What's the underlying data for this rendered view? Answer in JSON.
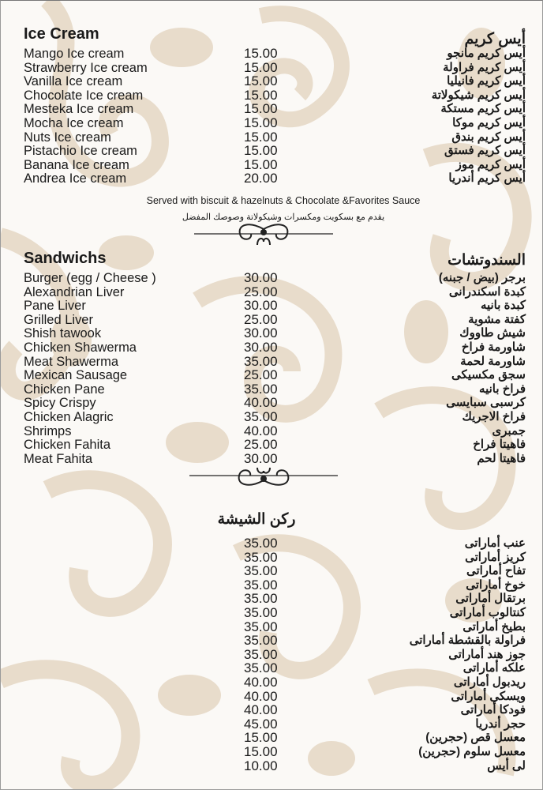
{
  "colors": {
    "background": "#fbf9f6",
    "damask": "#e8dccb",
    "text": "#1a1a1a"
  },
  "ice_cream": {
    "title_en": "Ice Cream",
    "title_ar": "أيس كريم",
    "items": [
      {
        "en": "Mango Ice cream",
        "price": "15.00",
        "ar": "أيس كريم مانجو"
      },
      {
        "en": "Strawberry Ice cream",
        "price": "15.00",
        "ar": "أيس كريم فراولة"
      },
      {
        "en": "Vanilla Ice cream",
        "price": "15.00",
        "ar": "أيس كريم فانيليا"
      },
      {
        "en": "Chocolate Ice cream",
        "price": "15.00",
        "ar": "أيس كريم شيكولاتة"
      },
      {
        "en": "Mesteka Ice cream",
        "price": "15.00",
        "ar": "أيس كريم مستكة"
      },
      {
        "en": "Mocha Ice cream",
        "price": "15.00",
        "ar": "أيس كريم موكا"
      },
      {
        "en": "Nuts Ice cream",
        "price": "15.00",
        "ar": "أيس كريم بندق"
      },
      {
        "en": "Pistachio Ice cream",
        "price": "15.00",
        "ar": "أيس كريم فستق"
      },
      {
        "en": "Banana Ice cream",
        "price": "15.00",
        "ar": "أيس كريم موز"
      },
      {
        "en": "Andrea Ice cream",
        "price": "20.00",
        "ar": "أيس كريم أندريا"
      }
    ],
    "note_en": "Served with biscuit & hazelnuts & Chocolate &Favorites Sauce",
    "note_ar": "يقدم مع بسكويت ومكسرات وشيكولاتة وصوصك المفضل"
  },
  "sandwiches": {
    "title_en": "Sandwichs",
    "title_ar": "السندوتشات",
    "items": [
      {
        "en": "Burger (egg / Cheese )",
        "price": "30.00",
        "ar": "برجر (بيض / جبنه)"
      },
      {
        "en": "Alexandrian Liver",
        "price": "25.00",
        "ar": "كبدة اسكندرانى"
      },
      {
        "en": "Pane Liver",
        "price": "30.00",
        "ar": "كبدة بانيه"
      },
      {
        "en": "Grilled Liver",
        "price": "25.00",
        "ar": "كفتة مشوية"
      },
      {
        "en": "Shish tawook",
        "price": "30.00",
        "ar": "شيش طاووك"
      },
      {
        "en": "Chicken Shawerma",
        "price": "30.00",
        "ar": "شاورمة فراخ"
      },
      {
        "en": "Meat Shawerma",
        "price": "35.00",
        "ar": "شاورمة لحمة"
      },
      {
        "en": "Mexican Sausage",
        "price": "25.00",
        "ar": "سجق مكسيكى"
      },
      {
        "en": "Chicken Pane",
        "price": "35.00",
        "ar": "فراخ بانيه"
      },
      {
        "en": "Spicy Crispy",
        "price": "40.00",
        "ar": "كرسبى سبايسى"
      },
      {
        "en": "Chicken Alagric",
        "price": "35.00",
        "ar": "فراخ الاجريك"
      },
      {
        "en": "Shrimps",
        "price": "40.00",
        "ar": "جمبرى"
      },
      {
        "en": "Chicken Fahita",
        "price": "25.00",
        "ar": "فاهيتا فراخ"
      },
      {
        "en": "Meat Fahita",
        "price": "30.00",
        "ar": "فاهيتا لحم"
      }
    ]
  },
  "shisha": {
    "title_ar": "ركن الشيشة",
    "items": [
      {
        "price": "35.00",
        "ar": "عنب أماراتى"
      },
      {
        "price": "35.00",
        "ar": "كريز أماراتى"
      },
      {
        "price": "35.00",
        "ar": "تفاح أماراتى"
      },
      {
        "price": "35.00",
        "ar": "خوخ أماراتى"
      },
      {
        "price": "35.00",
        "ar": "برتقال أماراتى"
      },
      {
        "price": "35.00",
        "ar": "كنتالوب أماراتى"
      },
      {
        "price": "35.00",
        "ar": "بطيخ أماراتى"
      },
      {
        "price": "35.00",
        "ar": "فراولة بالقشطة أماراتى"
      },
      {
        "price": "35.00",
        "ar": "جوز هند أماراتى"
      },
      {
        "price": "35.00",
        "ar": "علكه أماراتى"
      },
      {
        "price": "40.00",
        "ar": "ريدبول أماراتى"
      },
      {
        "price": "40.00",
        "ar": "ويسكى أماراتى"
      },
      {
        "price": "40.00",
        "ar": "فودكا أماراتى"
      },
      {
        "price": "45.00",
        "ar": "حجر أندريا"
      },
      {
        "price": "15.00",
        "ar": "معسل قص (حجرين)"
      },
      {
        "price": "15.00",
        "ar": "معسل سلوم (حجرين)"
      },
      {
        "price": "10.00",
        "ar": "لى أيس"
      }
    ]
  }
}
